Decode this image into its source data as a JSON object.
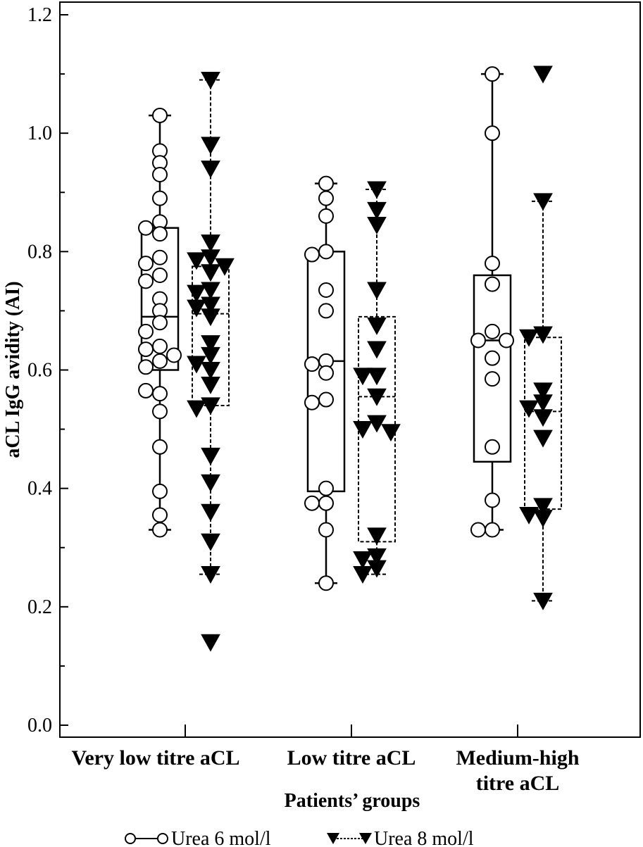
{
  "chart_data": {
    "type": "box",
    "xlabel": "Patients’ groups",
    "ylabel": "aCL IgG avidity (AI)",
    "ylim": [
      0.0,
      1.2
    ],
    "yticks": [
      "0.0",
      "0.2",
      "0.4",
      "0.6",
      "0.8",
      "1.0",
      "1.2"
    ],
    "grid": false,
    "legend_position": "bottom",
    "categories": [
      [
        "Very low titre aCL"
      ],
      [
        "Low titre aCL"
      ],
      [
        "Medium-high",
        "titre aCL"
      ]
    ],
    "series": [
      {
        "name": "Urea 6 mol/l",
        "marker": "circle",
        "line": "solid",
        "boxes": [
          {
            "whisker_low": 0.33,
            "q1": 0.6,
            "median": 0.69,
            "q3": 0.84,
            "whisker_high": 1.03
          },
          {
            "whisker_low": 0.24,
            "q1": 0.395,
            "median": 0.615,
            "q3": 0.8,
            "whisker_high": 0.915
          },
          {
            "whisker_low": 0.33,
            "q1": 0.445,
            "median": 0.65,
            "q3": 0.76,
            "whisker_high": 1.1
          }
        ],
        "points": [
          [
            1.03,
            0.97,
            0.95,
            0.93,
            0.89,
            0.85,
            0.84,
            0.83,
            0.79,
            0.78,
            0.76,
            0.75,
            0.72,
            0.7,
            0.68,
            0.665,
            0.64,
            0.635,
            0.625,
            0.615,
            0.605,
            0.56,
            0.565,
            0.53,
            0.47,
            0.395,
            0.355,
            0.33
          ],
          [
            0.915,
            0.89,
            0.86,
            0.8,
            0.795,
            0.735,
            0.7,
            0.615,
            0.61,
            0.595,
            0.55,
            0.545,
            0.4,
            0.375,
            0.375,
            0.33,
            0.24
          ],
          [
            1.1,
            1.0,
            0.78,
            0.745,
            0.665,
            0.65,
            0.65,
            0.62,
            0.585,
            0.47,
            0.38,
            0.33,
            0.33
          ]
        ]
      },
      {
        "name": "Urea 8 mol/l",
        "marker": "triangle-down",
        "line": "dotted",
        "boxes": [
          {
            "whisker_low": 0.255,
            "q1": 0.54,
            "median": 0.695,
            "q3": 0.775,
            "whisker_high": 1.09
          },
          {
            "whisker_low": 0.255,
            "q1": 0.31,
            "median": 0.555,
            "q3": 0.69,
            "whisker_high": 0.905
          },
          {
            "whisker_low": 0.21,
            "q1": 0.365,
            "median": 0.53,
            "q3": 0.655,
            "whisker_high": 0.885
          }
        ],
        "points": [
          [
            1.09,
            0.98,
            0.94,
            0.815,
            0.79,
            0.785,
            0.775,
            0.765,
            0.735,
            0.73,
            0.71,
            0.705,
            0.69,
            0.645,
            0.625,
            0.61,
            0.6,
            0.575,
            0.54,
            0.535,
            0.455,
            0.41,
            0.36,
            0.31,
            0.255,
            0.14
          ],
          [
            0.905,
            0.87,
            0.845,
            0.735,
            0.675,
            0.635,
            0.59,
            0.59,
            0.555,
            0.51,
            0.5,
            0.495,
            0.32,
            0.285,
            0.28,
            0.265,
            0.255
          ],
          [
            1.1,
            0.885,
            0.66,
            0.655,
            0.565,
            0.545,
            0.535,
            0.52,
            0.485,
            0.37,
            0.355,
            0.35,
            0.21
          ]
        ]
      }
    ]
  }
}
